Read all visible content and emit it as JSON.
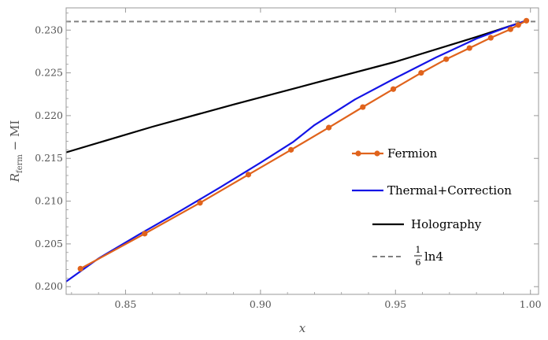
{
  "chart_data": {
    "type": "line",
    "xlabel": "x",
    "ylabel_main": "R",
    "ylabel_sub": "ferm",
    "ylabel_rest": " − MI",
    "xlim": [
      0.828,
      1.003
    ],
    "ylim": [
      0.1991,
      0.2326
    ],
    "x_ticks": [
      0.85,
      0.9,
      0.95,
      1.0
    ],
    "x_tick_labels": [
      "0.85",
      "0.90",
      "0.95",
      "1.00"
    ],
    "y_ticks": [
      0.2,
      0.205,
      0.21,
      0.215,
      0.22,
      0.225,
      0.23
    ],
    "y_tick_labels": [
      "0.200",
      "0.205",
      "0.210",
      "0.215",
      "0.220",
      "0.225",
      "0.230"
    ],
    "grid": false,
    "legend_position": "right",
    "series": [
      {
        "name": "Fermion",
        "color": "#e0631c",
        "style": "line-markers",
        "x": [
          0.8333,
          0.8571,
          0.8776,
          0.8955,
          0.9113,
          0.9253,
          0.9379,
          0.9492,
          0.9595,
          0.9688,
          0.9774,
          0.9853,
          0.9926,
          0.9955,
          0.9985
        ],
        "y": [
          0.2021,
          0.2062,
          0.2098,
          0.2131,
          0.216,
          0.2186,
          0.221,
          0.2231,
          0.225,
          0.2266,
          0.2279,
          0.2291,
          0.2301,
          0.2306,
          0.2311
        ]
      },
      {
        "name": "Thermal+Correction",
        "color": "#1414e6",
        "style": "line",
        "x": [
          0.828,
          0.84,
          0.855,
          0.87,
          0.885,
          0.9,
          0.912,
          0.92,
          0.935,
          0.95,
          0.965,
          0.98,
          0.99,
          0.9985
        ],
        "y": [
          0.2006,
          0.2033,
          0.2061,
          0.2088,
          0.2116,
          0.2145,
          0.2169,
          0.2189,
          0.2219,
          0.2244,
          0.2268,
          0.229,
          0.2302,
          0.2311
        ]
      },
      {
        "name": "Holography",
        "color": "#000000",
        "style": "line",
        "x": [
          0.828,
          0.86,
          0.89,
          0.92,
          0.95,
          0.98,
          0.9985
        ],
        "y": [
          0.2157,
          0.2187,
          0.2213,
          0.2238,
          0.2263,
          0.2292,
          0.2311
        ]
      },
      {
        "name_numerator": "1",
        "name_denominator": "6",
        "name_rest": "ln4",
        "color": "#808080",
        "style": "dashed",
        "x": [
          0.828,
          1.003
        ],
        "y": [
          0.231,
          0.231
        ]
      }
    ]
  }
}
